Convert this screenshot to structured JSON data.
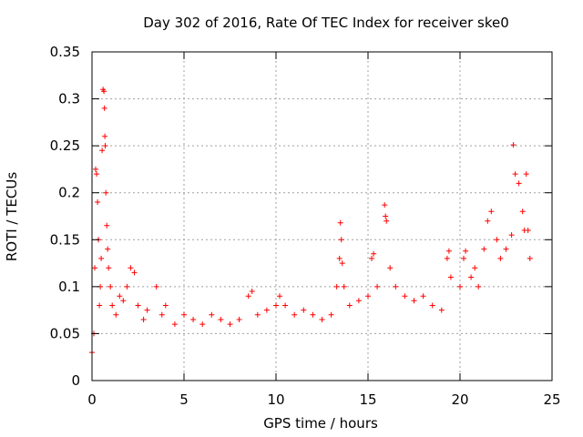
{
  "chart_data": {
    "type": "scatter",
    "title": "Day 302 of 2016, Rate Of TEC Index for receiver ske0",
    "xlabel": "GPS time / hours",
    "ylabel": "ROTI / TECUs",
    "xlim": [
      0,
      25
    ],
    "ylim": [
      0,
      0.35
    ],
    "xticks": [
      0,
      5,
      10,
      15,
      20,
      25
    ],
    "xtick_labels": [
      "0",
      "5",
      "10",
      "15",
      "20",
      "25"
    ],
    "yticks": [
      0,
      0.05,
      0.1,
      0.15,
      0.2,
      0.25,
      0.3,
      0.35
    ],
    "ytick_labels": [
      "0",
      "0.05",
      "0.1",
      "0.15",
      "0.2",
      "0.25",
      "0.3",
      "0.35"
    ],
    "grid": true,
    "marker": "+",
    "color": "#ff0000",
    "series": [
      {
        "name": "ROTI",
        "points": [
          [
            0.0,
            0.03
          ],
          [
            0.1,
            0.05
          ],
          [
            0.15,
            0.12
          ],
          [
            0.2,
            0.225
          ],
          [
            0.25,
            0.22
          ],
          [
            0.3,
            0.19
          ],
          [
            0.35,
            0.15
          ],
          [
            0.4,
            0.08
          ],
          [
            0.45,
            0.1
          ],
          [
            0.5,
            0.13
          ],
          [
            0.55,
            0.245
          ],
          [
            0.6,
            0.31
          ],
          [
            0.65,
            0.308
          ],
          [
            0.68,
            0.29
          ],
          [
            0.7,
            0.26
          ],
          [
            0.72,
            0.25
          ],
          [
            0.75,
            0.2
          ],
          [
            0.8,
            0.165
          ],
          [
            0.85,
            0.14
          ],
          [
            0.9,
            0.12
          ],
          [
            1.0,
            0.1
          ],
          [
            1.1,
            0.08
          ],
          [
            1.3,
            0.07
          ],
          [
            1.5,
            0.09
          ],
          [
            1.7,
            0.085
          ],
          [
            1.9,
            0.1
          ],
          [
            2.1,
            0.12
          ],
          [
            2.3,
            0.115
          ],
          [
            2.5,
            0.08
          ],
          [
            2.8,
            0.065
          ],
          [
            3.0,
            0.075
          ],
          [
            3.5,
            0.1
          ],
          [
            3.8,
            0.07
          ],
          [
            4.0,
            0.08
          ],
          [
            4.5,
            0.06
          ],
          [
            5.0,
            0.07
          ],
          [
            5.5,
            0.065
          ],
          [
            6.0,
            0.06
          ],
          [
            6.5,
            0.07
          ],
          [
            7.0,
            0.065
          ],
          [
            7.5,
            0.06
          ],
          [
            8.0,
            0.065
          ],
          [
            8.5,
            0.09
          ],
          [
            8.7,
            0.095
          ],
          [
            9.0,
            0.07
          ],
          [
            9.5,
            0.075
          ],
          [
            10.0,
            0.08
          ],
          [
            10.2,
            0.09
          ],
          [
            10.5,
            0.08
          ],
          [
            11.0,
            0.07
          ],
          [
            11.5,
            0.075
          ],
          [
            12.0,
            0.07
          ],
          [
            12.5,
            0.065
          ],
          [
            13.0,
            0.07
          ],
          [
            13.3,
            0.1
          ],
          [
            13.45,
            0.13
          ],
          [
            13.5,
            0.168
          ],
          [
            13.55,
            0.15
          ],
          [
            13.6,
            0.125
          ],
          [
            13.7,
            0.1
          ],
          [
            14.0,
            0.08
          ],
          [
            14.5,
            0.085
          ],
          [
            15.0,
            0.09
          ],
          [
            15.2,
            0.13
          ],
          [
            15.3,
            0.135
          ],
          [
            15.5,
            0.1
          ],
          [
            15.9,
            0.187
          ],
          [
            15.95,
            0.175
          ],
          [
            16.0,
            0.17
          ],
          [
            16.2,
            0.12
          ],
          [
            16.5,
            0.1
          ],
          [
            17.0,
            0.09
          ],
          [
            17.5,
            0.085
          ],
          [
            18.0,
            0.09
          ],
          [
            18.5,
            0.08
          ],
          [
            19.0,
            0.075
          ],
          [
            19.3,
            0.13
          ],
          [
            19.4,
            0.138
          ],
          [
            19.5,
            0.11
          ],
          [
            20.0,
            0.1
          ],
          [
            20.2,
            0.13
          ],
          [
            20.3,
            0.138
          ],
          [
            20.6,
            0.11
          ],
          [
            20.8,
            0.12
          ],
          [
            21.0,
            0.1
          ],
          [
            21.3,
            0.14
          ],
          [
            21.5,
            0.17
          ],
          [
            21.7,
            0.18
          ],
          [
            22.0,
            0.15
          ],
          [
            22.2,
            0.13
          ],
          [
            22.5,
            0.14
          ],
          [
            22.8,
            0.155
          ],
          [
            22.9,
            0.251
          ],
          [
            23.0,
            0.22
          ],
          [
            23.2,
            0.21
          ],
          [
            23.4,
            0.18
          ],
          [
            23.5,
            0.16
          ],
          [
            23.6,
            0.22
          ],
          [
            23.7,
            0.16
          ],
          [
            23.8,
            0.13
          ]
        ]
      }
    ]
  }
}
